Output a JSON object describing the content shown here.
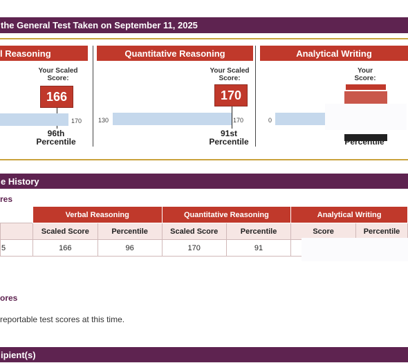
{
  "top_band": {
    "title": "the General Test Taken on September 11, 2025"
  },
  "panels": {
    "verbal": {
      "title": "l Reasoning",
      "scaled_label_1": "Your Scaled",
      "scaled_label_2": "Score:",
      "score": "166",
      "max": "170",
      "pct_1": "96th",
      "pct_2": "Percentile"
    },
    "quant": {
      "title": "Quantitative Reasoning",
      "scaled_label_1": "Your Scaled",
      "scaled_label_2": "Score:",
      "score": "170",
      "min": "130",
      "max": "170",
      "pct_1": "91st",
      "pct_2": "Percentile"
    },
    "writing": {
      "title": "Analytical Writing",
      "scaled_label_1": "Your",
      "scaled_label_2": "Score:",
      "min": "0",
      "pct_2": "Percentile"
    }
  },
  "history_band": {
    "title": "e History"
  },
  "history": {
    "sub_title": "res",
    "col_groups": [
      "Verbal Reasoning",
      "Quantitative Reasoning",
      "Analytical Writing"
    ],
    "col_subs": [
      "Scaled Score",
      "Percentile",
      "Scaled Score",
      "Percentile",
      "Score",
      "Percentile"
    ],
    "row": {
      "date_frag": "5",
      "v_scaled": "166",
      "v_pct": "96",
      "q_scaled": "170",
      "q_pct": "91"
    }
  },
  "other_scores": {
    "sub_title": "ores",
    "message": "reportable test scores at this time."
  },
  "recipients_band": {
    "title": "ipient(s)"
  }
}
